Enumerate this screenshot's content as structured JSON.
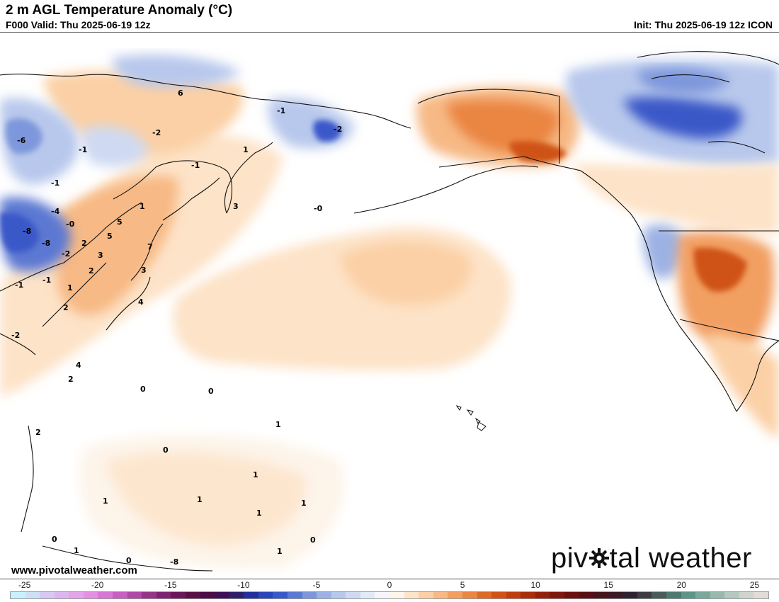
{
  "header": {
    "title": "2 m AGL Temperature Anomaly (°C)",
    "valid": "F000 Valid: Thu 2025-06-19 12z",
    "init": "Init: Thu 2025-06-19 12z ICON"
  },
  "map": {
    "field": "2 m AGL temperature anomaly",
    "units": "°C",
    "anomaly_labels": [
      "6",
      "-1",
      "-2",
      "-6",
      "-1",
      "-1",
      "-2",
      "1",
      "-1",
      "1",
      "3",
      "-0",
      "-4",
      "-0",
      "-8",
      "-8",
      "-2",
      "5",
      "5",
      "2",
      "3",
      "2",
      "7",
      "3",
      "4",
      "-1",
      "-1",
      "1",
      "2",
      "-2",
      "4",
      "2",
      "0",
      "0",
      "1",
      "0",
      "1",
      "1",
      "1",
      "1",
      "1",
      "1",
      "0",
      "0",
      "1",
      "-8",
      "2",
      "0"
    ]
  },
  "branding": {
    "website": "www.pivotalweather.com",
    "logo_text_1": "piv",
    "logo_text_2": "tal weather",
    "logo_icon": "gear-icon"
  },
  "colorbar": {
    "tick_labels": [
      "-25",
      "-20",
      "-15",
      "-10",
      "-5",
      "0",
      "5",
      "10",
      "15",
      "20",
      "25"
    ],
    "tick_values": [
      -25,
      -20,
      -15,
      -10,
      -5,
      0,
      5,
      10,
      15,
      20,
      25
    ],
    "range": [
      -26,
      26
    ],
    "colors": [
      "#c7f1fb",
      "#cde0f6",
      "#d6c9f2",
      "#dcb7ee",
      "#e3a5ea",
      "#e38fe2",
      "#d877d4",
      "#c95fc0",
      "#b048a6",
      "#963489",
      "#7d236f",
      "#6a1857",
      "#5a1046",
      "#4c0c45",
      "#3e0f56",
      "#2e2068",
      "#22309a",
      "#2b45b8",
      "#3a59c8",
      "#5b78d2",
      "#7e97dc",
      "#9db2e4",
      "#b8c8ec",
      "#cfdaf2",
      "#e3eaf7",
      "#f4f6fb",
      "#fdf4ea",
      "#fde3c8",
      "#fbd0a6",
      "#f7b985",
      "#f29f62",
      "#ea8543",
      "#de6a28",
      "#cf5218",
      "#bd3e10",
      "#a82e0c",
      "#93200b",
      "#7e170c",
      "#6a100e",
      "#571013",
      "#46141b",
      "#3a1a24",
      "#2e2330",
      "#3c3c42",
      "#4a5b5a",
      "#4d7a6f",
      "#5f9586",
      "#7aa89c",
      "#98b9ae",
      "#b5c8c0",
      "#cfd4cf",
      "#e2dcd8"
    ]
  }
}
